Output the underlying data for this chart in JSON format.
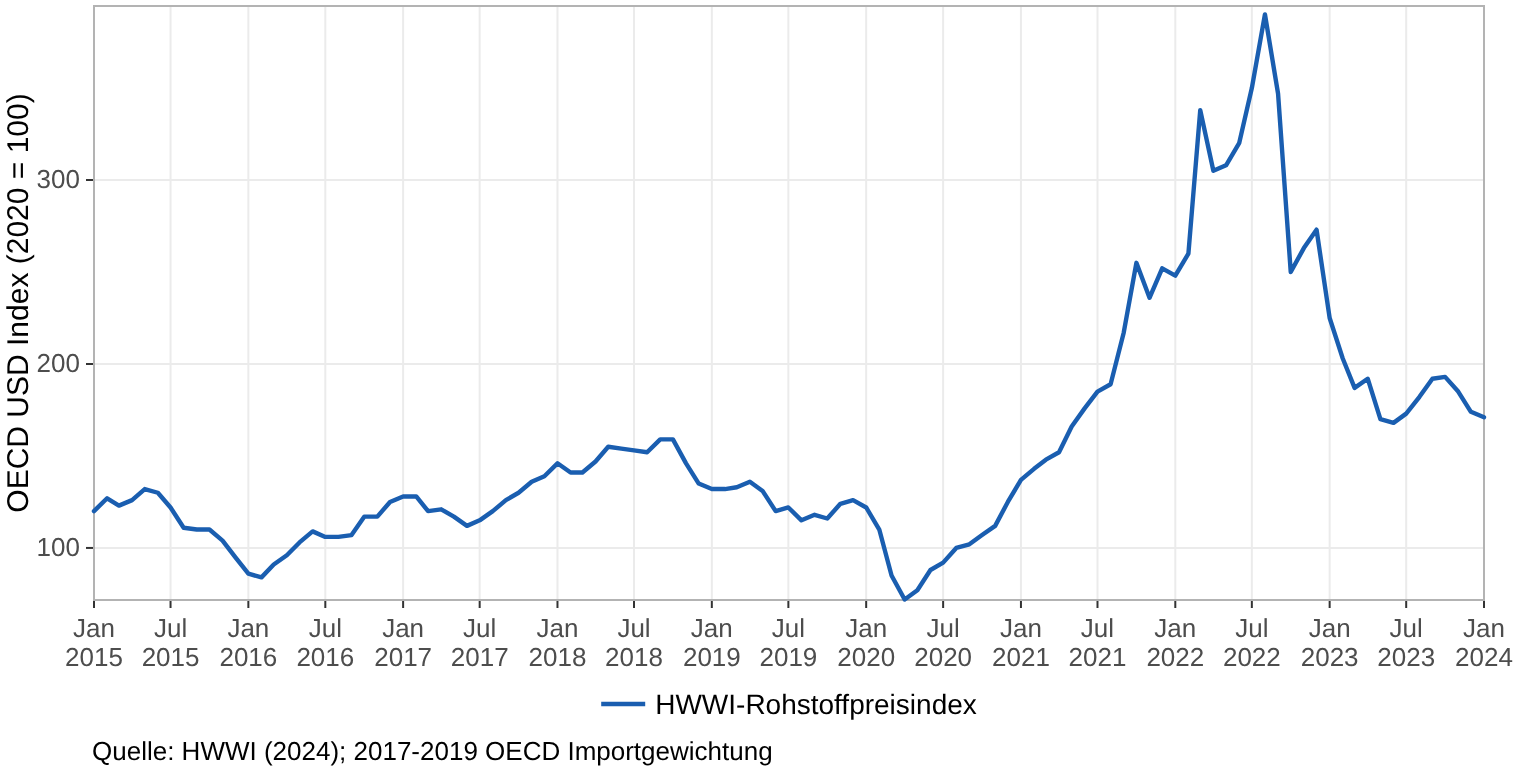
{
  "chart_data": {
    "type": "line",
    "ylabel": "OECD USD Index (2020 = 100)",
    "x": [
      "2015-01",
      "2015-02",
      "2015-03",
      "2015-04",
      "2015-05",
      "2015-06",
      "2015-07",
      "2015-08",
      "2015-09",
      "2015-10",
      "2015-11",
      "2015-12",
      "2016-01",
      "2016-02",
      "2016-03",
      "2016-04",
      "2016-05",
      "2016-06",
      "2016-07",
      "2016-08",
      "2016-09",
      "2016-10",
      "2016-11",
      "2016-12",
      "2017-01",
      "2017-02",
      "2017-03",
      "2017-04",
      "2017-05",
      "2017-06",
      "2017-07",
      "2017-08",
      "2017-09",
      "2017-10",
      "2017-11",
      "2017-12",
      "2018-01",
      "2018-02",
      "2018-03",
      "2018-04",
      "2018-05",
      "2018-06",
      "2018-07",
      "2018-08",
      "2018-09",
      "2018-10",
      "2018-11",
      "2018-12",
      "2019-01",
      "2019-02",
      "2019-03",
      "2019-04",
      "2019-05",
      "2019-06",
      "2019-07",
      "2019-08",
      "2019-09",
      "2019-10",
      "2019-11",
      "2019-12",
      "2020-01",
      "2020-02",
      "2020-03",
      "2020-04",
      "2020-05",
      "2020-06",
      "2020-07",
      "2020-08",
      "2020-09",
      "2020-10",
      "2020-11",
      "2020-12",
      "2021-01",
      "2021-02",
      "2021-03",
      "2021-04",
      "2021-05",
      "2021-06",
      "2021-07",
      "2021-08",
      "2021-09",
      "2021-10",
      "2021-11",
      "2021-12",
      "2022-01",
      "2022-02",
      "2022-03",
      "2022-04",
      "2022-05",
      "2022-06",
      "2022-07",
      "2022-08",
      "2022-09",
      "2022-10",
      "2022-11",
      "2022-12",
      "2023-01",
      "2023-02",
      "2023-03",
      "2023-04",
      "2023-05",
      "2023-06",
      "2023-07",
      "2023-08",
      "2023-09",
      "2023-10",
      "2023-11",
      "2023-12",
      "2024-01"
    ],
    "series": [
      {
        "name": "HWWI-Rohstoffpreisindex",
        "color": "#1a5eb0",
        "values": [
          120,
          127,
          123,
          126,
          132,
          130,
          122,
          111,
          110,
          110,
          104,
          95,
          86,
          84,
          91,
          96,
          103,
          109,
          106,
          106,
          107,
          117,
          117,
          125,
          128,
          128,
          120,
          121,
          117,
          112,
          115,
          120,
          126,
          130,
          136,
          139,
          146,
          141,
          141,
          147,
          155,
          154,
          153,
          152,
          159,
          159,
          146,
          135,
          132,
          132,
          133,
          136,
          131,
          120,
          122,
          115,
          118,
          116,
          124,
          126,
          122,
          110,
          85,
          72,
          77,
          88,
          92,
          100,
          102,
          107,
          112,
          125,
          137,
          143,
          148,
          152,
          166,
          176,
          185,
          189,
          217,
          255,
          236,
          252,
          248,
          260,
          338,
          305,
          308,
          320,
          350,
          390,
          347,
          250,
          263,
          273,
          225,
          203,
          187,
          192,
          170,
          168,
          173,
          182,
          192,
          193,
          185,
          174,
          171
        ]
      }
    ],
    "xlim": [
      "2015-01",
      "2024-01"
    ],
    "xticks": [
      {
        "value": "2015-01",
        "label": "Jan\n2015"
      },
      {
        "value": "2015-07",
        "label": "Jul\n2015"
      },
      {
        "value": "2016-01",
        "label": "Jan\n2016"
      },
      {
        "value": "2016-07",
        "label": "Jul\n2016"
      },
      {
        "value": "2017-01",
        "label": "Jan\n2017"
      },
      {
        "value": "2017-07",
        "label": "Jul\n2017"
      },
      {
        "value": "2018-01",
        "label": "Jan\n2018"
      },
      {
        "value": "2018-07",
        "label": "Jul\n2018"
      },
      {
        "value": "2019-01",
        "label": "Jan\n2019"
      },
      {
        "value": "2019-07",
        "label": "Jul\n2019"
      },
      {
        "value": "2020-01",
        "label": "Jan\n2020"
      },
      {
        "value": "2020-07",
        "label": "Jul\n2020"
      },
      {
        "value": "2021-01",
        "label": "Jan\n2021"
      },
      {
        "value": "2021-07",
        "label": "Jul\n2021"
      },
      {
        "value": "2022-01",
        "label": "Jan\n2022"
      },
      {
        "value": "2022-07",
        "label": "Jul\n2022"
      },
      {
        "value": "2023-01",
        "label": "Jan\n2023"
      },
      {
        "value": "2023-07",
        "label": "Jul\n2023"
      },
      {
        "value": "2024-01",
        "label": "Jan\n2024"
      }
    ],
    "ylim": [
      71.7,
      394.6
    ],
    "yticks": [
      100,
      200,
      300
    ],
    "grid": true,
    "legend": "bottom",
    "line_style": "solid",
    "marker": "none",
    "annotations": [
      "Quelle: HWWI (2024); 2017-2019 OECD Importgewichtung"
    ]
  }
}
